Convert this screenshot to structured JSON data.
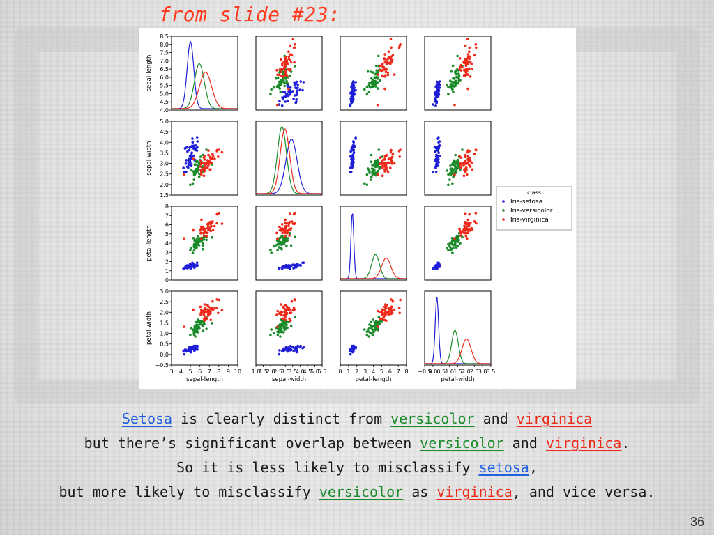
{
  "slide": {
    "heading": "from slide #23:",
    "page_number": "36",
    "caption": {
      "line1": [
        {
          "text": "Setosa",
          "hl": "blue"
        },
        {
          "text": " is clearly distinct from ",
          "hl": ""
        },
        {
          "text": "versicolor",
          "hl": "green"
        },
        {
          "text": " and ",
          "hl": ""
        },
        {
          "text": "virginica",
          "hl": "red"
        }
      ],
      "line2": [
        {
          "text": "but there’s significant overlap between ",
          "hl": ""
        },
        {
          "text": "versicolor",
          "hl": "green"
        },
        {
          "text": " and ",
          "hl": ""
        },
        {
          "text": "virginica",
          "hl": "red"
        },
        {
          "text": ".",
          "hl": ""
        }
      ],
      "line3": [
        {
          "text": "So it is less likely to misclassify ",
          "hl": ""
        },
        {
          "text": "setosa",
          "hl": "blue"
        },
        {
          "text": ",",
          "hl": ""
        }
      ],
      "line4": [
        {
          "text": "but more likely to misclassify ",
          "hl": ""
        },
        {
          "text": "versicolor",
          "hl": "green"
        },
        {
          "text": " as ",
          "hl": ""
        },
        {
          "text": "virginica",
          "hl": "red"
        },
        {
          "text": ", and vice versa.",
          "hl": ""
        }
      ]
    }
  },
  "colors": {
    "setosa": "#1f1fd8",
    "versicolor": "#1a8a2a",
    "virginica": "#ee2a1a"
  },
  "chart_data": {
    "type": "scatter",
    "subtype": "pair-plot",
    "variables": [
      "sepal-length",
      "sepal-width",
      "petal-length",
      "petal-width"
    ],
    "axis_labels": [
      "sepal-length",
      "sepal-width",
      "petal-length",
      "petal-width"
    ],
    "ranges": {
      "sepal-length": {
        "ylim": [
          4.0,
          8.5
        ],
        "yticks": [
          "4.0",
          "4.5",
          "5.0",
          "5.5",
          "6.0",
          "6.5",
          "7.0",
          "7.5",
          "8.0",
          "8.5"
        ],
        "xlim": [
          3,
          10
        ],
        "xticks": [
          "3",
          "4",
          "5",
          "6",
          "7",
          "8",
          "9",
          "10"
        ]
      },
      "sepal-width": {
        "ylim": [
          1.5,
          5.0
        ],
        "yticks": [
          "1.5",
          "2.0",
          "2.5",
          "3.0",
          "3.5",
          "4.0",
          "4.5",
          "5.0"
        ],
        "xlim": [
          1.0,
          5.5
        ],
        "xticks": [
          "1.0",
          "1.5",
          "2.0",
          "2.5",
          "3.0",
          "3.5",
          "4.0",
          "4.5",
          "5.0",
          "5.5"
        ]
      },
      "petal-length": {
        "ylim": [
          0,
          8
        ],
        "yticks": [
          "0",
          "1",
          "2",
          "3",
          "4",
          "5",
          "6",
          "7",
          "8"
        ],
        "xlim": [
          0,
          8
        ],
        "xticks": [
          "0",
          "1",
          "2",
          "3",
          "4",
          "5",
          "6",
          "7",
          "8"
        ]
      },
      "petal-width": {
        "ylim": [
          -0.5,
          3.0
        ],
        "yticks": [
          "−0.5",
          "0.0",
          "0.5",
          "1.0",
          "1.5",
          "2.0",
          "2.5",
          "3.0"
        ],
        "xlim": [
          -0.5,
          3.5
        ],
        "xticks": [
          "−0.5",
          "0.0",
          "0.5",
          "1.0",
          "1.5",
          "2.0",
          "2.5",
          "3.0",
          "3.5"
        ]
      }
    },
    "legend": {
      "title": "class",
      "position": "right",
      "entries": [
        "Iris-setosa",
        "Iris-versicolor",
        "Iris-virginica"
      ]
    },
    "series": [
      {
        "name": "Iris-setosa",
        "color_key": "setosa",
        "mean": [
          5.0,
          3.42,
          1.46,
          0.24
        ],
        "sd": [
          0.35,
          0.38,
          0.17,
          0.1
        ]
      },
      {
        "name": "Iris-versicolor",
        "color_key": "versicolor",
        "mean": [
          5.94,
          2.77,
          4.26,
          1.33
        ],
        "sd": [
          0.52,
          0.31,
          0.47,
          0.2
        ]
      },
      {
        "name": "Iris-virginica",
        "color_key": "virginica",
        "mean": [
          6.59,
          2.97,
          5.55,
          2.03
        ],
        "sd": [
          0.64,
          0.32,
          0.55,
          0.27
        ]
      }
    ],
    "points_per_class": 50
  }
}
